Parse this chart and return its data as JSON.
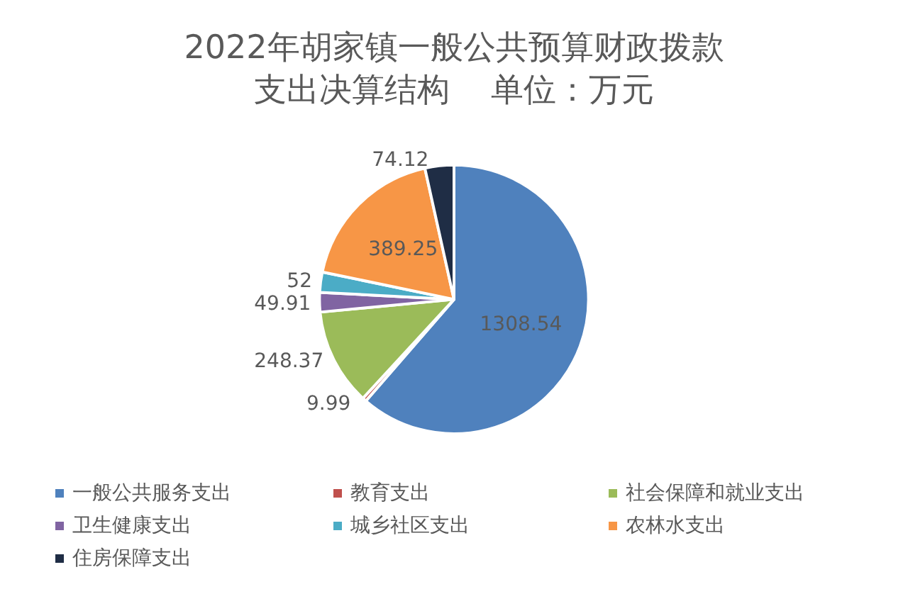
{
  "chart_data": {
    "type": "pie",
    "title": "2022年胡家镇一般公共预算财政拨款支出决算结构    单位：万元",
    "categories": [
      "一般公共服务支出",
      "教育支出",
      "社会保障和就业支出",
      "卫生健康支出",
      "城乡社区支出",
      "农林水支出",
      "住房保障支出"
    ],
    "values": [
      1308.54,
      9.99,
      248.37,
      49.91,
      52,
      389.25,
      74.12
    ],
    "colors": [
      "#4f81bd",
      "#c0504d",
      "#9bbb59",
      "#8064a2",
      "#4bacc6",
      "#f79646",
      "#1f2d45"
    ],
    "data_labels": true,
    "legend": "bottom"
  }
}
